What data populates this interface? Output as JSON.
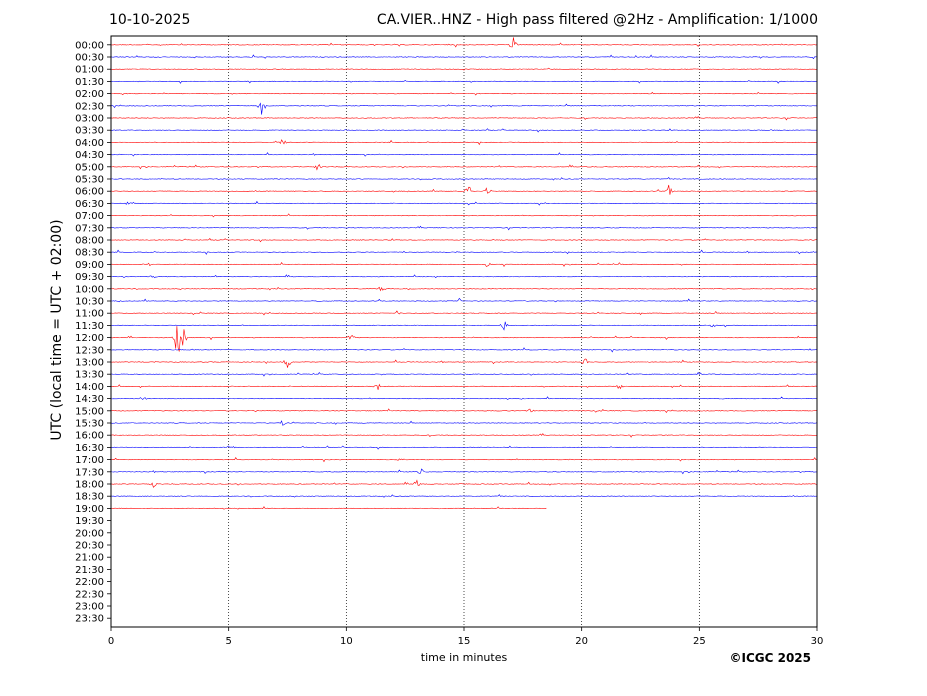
{
  "header": {
    "date": "10-10-2025",
    "title": "CA.VIER..HNZ - High pass filtered @2Hz - Amplification: 1/1000"
  },
  "footer": {
    "copyright": "©ICGC 2025"
  },
  "chart_data": {
    "type": "line",
    "title": "CA.VIER..HNZ - High pass filtered @2Hz - Amplification: 1/1000",
    "xlabel": "time in minutes",
    "ylabel": "UTC (local time = UTC + 02:00)",
    "xlim": [
      0,
      30
    ],
    "x_ticks": [
      0,
      5,
      10,
      15,
      20,
      25,
      30
    ],
    "x_gridlines": [
      5,
      10,
      15,
      20,
      25
    ],
    "rows": [
      "00:00",
      "00:30",
      "01:00",
      "01:30",
      "02:00",
      "02:30",
      "03:00",
      "03:30",
      "04:00",
      "04:30",
      "05:00",
      "05:30",
      "06:00",
      "06:30",
      "07:00",
      "07:30",
      "08:00",
      "08:30",
      "09:00",
      "09:30",
      "10:00",
      "10:30",
      "11:00",
      "11:30",
      "12:00",
      "12:30",
      "13:00",
      "13:30",
      "14:00",
      "14:30",
      "15:00",
      "15:30",
      "16:00",
      "16:30",
      "17:00",
      "17:30",
      "18:00",
      "18:30",
      "19:00",
      "19:30",
      "20:00",
      "20:30",
      "21:00",
      "21:30",
      "22:00",
      "22:30",
      "23:00",
      "23:30"
    ],
    "trace_colors": [
      "#ff0000",
      "#0000ff"
    ],
    "trace_end_minutes": {
      "19:00": 18.5
    },
    "events": [
      {
        "row": "00:00",
        "minute": 17.1,
        "amp": 0.7
      },
      {
        "row": "02:30",
        "minute": 6.4,
        "amp": 0.9
      },
      {
        "row": "04:00",
        "minute": 7.3,
        "amp": 0.35
      },
      {
        "row": "05:00",
        "minute": 8.8,
        "amp": 0.35
      },
      {
        "row": "06:00",
        "minute": 15.2,
        "amp": 0.6
      },
      {
        "row": "06:00",
        "minute": 16.0,
        "amp": 0.35
      },
      {
        "row": "06:00",
        "minute": 23.7,
        "amp": 0.6
      },
      {
        "row": "06:30",
        "minute": 0.8,
        "amp": 0.35
      },
      {
        "row": "09:00",
        "minute": 1.5,
        "amp": 0.45
      },
      {
        "row": "09:00",
        "minute": 16.0,
        "amp": 0.3
      },
      {
        "row": "09:30",
        "minute": 1.8,
        "amp": 0.3
      },
      {
        "row": "10:00",
        "minute": 11.5,
        "amp": 0.3
      },
      {
        "row": "10:30",
        "minute": 14.8,
        "amp": 0.3
      },
      {
        "row": "11:00",
        "minute": 12.2,
        "amp": 0.35
      },
      {
        "row": "11:30",
        "minute": 16.7,
        "amp": 0.5
      },
      {
        "row": "11:30",
        "minute": 25.6,
        "amp": 0.3
      },
      {
        "row": "12:00",
        "minute": 2.9,
        "amp": 1.8
      },
      {
        "row": "12:00",
        "minute": 10.2,
        "amp": 0.35
      },
      {
        "row": "13:00",
        "minute": 7.5,
        "amp": 0.55
      },
      {
        "row": "13:00",
        "minute": 20.1,
        "amp": 0.55
      },
      {
        "row": "14:00",
        "minute": 11.3,
        "amp": 0.45
      },
      {
        "row": "14:00",
        "minute": 21.6,
        "amp": 0.25
      },
      {
        "row": "14:30",
        "minute": 1.4,
        "amp": 0.3
      },
      {
        "row": "15:00",
        "minute": 17.8,
        "amp": 0.35
      },
      {
        "row": "15:30",
        "minute": 7.3,
        "amp": 0.3
      },
      {
        "row": "16:30",
        "minute": 5.1,
        "amp": 0.25
      },
      {
        "row": "17:00",
        "minute": 12.3,
        "amp": 0.2
      },
      {
        "row": "17:30",
        "minute": 13.2,
        "amp": 0.45
      },
      {
        "row": "18:00",
        "minute": 13.0,
        "amp": 0.3
      },
      {
        "row": "18:00",
        "minute": 1.8,
        "amp": 0.3
      }
    ]
  }
}
